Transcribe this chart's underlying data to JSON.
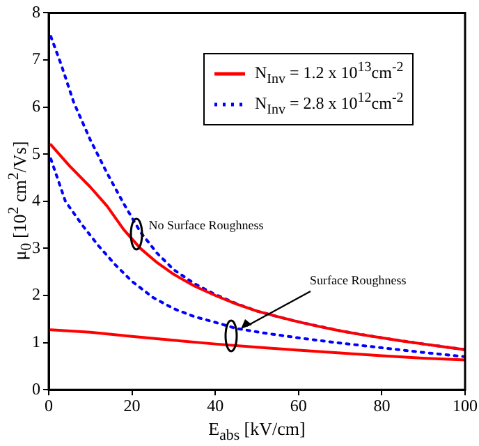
{
  "chart_data": {
    "type": "line",
    "xlabel": "E$_{abs}$ [kV/cm]",
    "ylabel": "μ$_{0}$ [10$^{2}$ cm$^{2}$/Vs]",
    "xlim": [
      0,
      100
    ],
    "xticks": [
      0,
      20,
      40,
      60,
      80,
      100
    ],
    "ylim": [
      0,
      8
    ],
    "yticks": [
      0,
      1,
      2,
      3,
      4,
      5,
      6,
      7,
      8
    ],
    "grid": false,
    "legend": "top right",
    "marker": "none",
    "series": [
      {
        "name": "N$_{Inv}$ = 1.2 x 10$^{13}$cm$^{-2}$",
        "color": "#ff0000",
        "line_style": "solid",
        "x": [
          0.5,
          5,
          10,
          14,
          18,
          22,
          26,
          30,
          35,
          40,
          45,
          50,
          55,
          60,
          65,
          70,
          75,
          80,
          85,
          90,
          95,
          100
        ],
        "values": [
          5.2,
          4.75,
          4.3,
          3.9,
          3.4,
          3.0,
          2.7,
          2.45,
          2.2,
          2.0,
          1.82,
          1.67,
          1.55,
          1.44,
          1.34,
          1.25,
          1.17,
          1.1,
          1.03,
          0.97,
          0.91,
          0.85
        ]
      },
      {
        "color": "#ff0000",
        "line_style": "solid",
        "x": [
          0.5,
          10,
          20,
          30,
          40,
          50,
          60,
          70,
          80,
          90,
          100
        ],
        "values": [
          1.27,
          1.22,
          1.13,
          1.05,
          0.97,
          0.9,
          0.84,
          0.78,
          0.72,
          0.67,
          0.63
        ]
      },
      {
        "name": "N$_{Inv}$ = 2.8 x 10$^{12}$cm$^{-2}$",
        "color": "#0000ff",
        "line_style": "dotted",
        "x": [
          0.5,
          3,
          6,
          10,
          14,
          18,
          22,
          26,
          30,
          35,
          40,
          45,
          50,
          55,
          60,
          70,
          80,
          90,
          100
        ],
        "values": [
          7.5,
          6.9,
          6.1,
          5.3,
          4.6,
          3.95,
          3.35,
          2.9,
          2.55,
          2.25,
          2.02,
          1.83,
          1.67,
          1.55,
          1.44,
          1.25,
          1.1,
          0.97,
          0.85
        ]
      },
      {
        "color": "#0000ff",
        "line_style": "dotted",
        "x": [
          0.5,
          4,
          8,
          12,
          16,
          20,
          25,
          30,
          35,
          40,
          45,
          52,
          60,
          70,
          80,
          90,
          100
        ],
        "values": [
          4.9,
          4.0,
          3.5,
          3.05,
          2.65,
          2.3,
          1.96,
          1.72,
          1.55,
          1.43,
          1.3,
          1.2,
          1.1,
          0.99,
          0.89,
          0.79,
          0.7
        ]
      }
    ],
    "annotations": [
      {
        "text": "No Surface Roughness",
        "x": 21,
        "y": 3.3
      },
      {
        "text": "Surface Roughness",
        "x": 46,
        "y": 1.3
      }
    ]
  }
}
